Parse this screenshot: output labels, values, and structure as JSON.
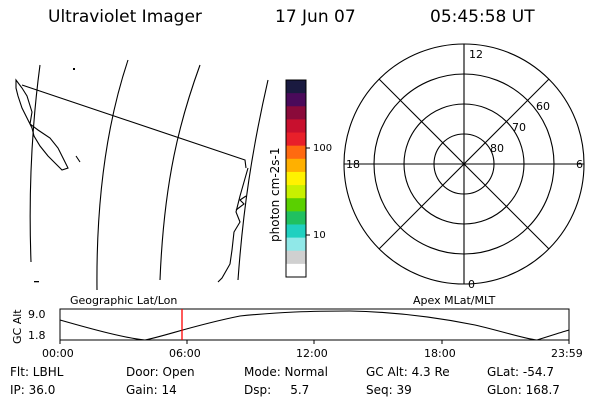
{
  "header": {
    "title": "Ultraviolet Imager",
    "date": "17 Jun 07",
    "time": "05:45:58 UT"
  },
  "colorbar": {
    "label": "photon cm-2s-1",
    "tick_labels": [
      "100",
      "10"
    ],
    "colors": [
      "#1a1a40",
      "#4a0a5a",
      "#8a0a3a",
      "#c8102e",
      "#e8202a",
      "#ff6a10",
      "#ffb000",
      "#fff200",
      "#c8f000",
      "#5ad000",
      "#20c060",
      "#20d0c0",
      "#90e8e8",
      "#d0d0d0",
      "#ffffff"
    ]
  },
  "polar_plot": {
    "mlt_labels": [
      "12",
      "18",
      "6",
      "0"
    ],
    "lat_labels": [
      "60",
      "70",
      "80"
    ]
  },
  "timeline": {
    "left_label": "Geographic Lat/Lon",
    "right_label": "Apex MLat/MLT",
    "ylabel": "GC Alt",
    "ytick_top": "9.0",
    "ytick_bottom": "1.8",
    "xticks": [
      "00:00",
      "06:00",
      "12:00",
      "18:00",
      "23:59"
    ],
    "marker_color": "#ff0000"
  },
  "info": {
    "filter": "Flt: LBHL",
    "door": "Door: Open",
    "mode": "Mode: Normal",
    "gc_alt": "GC Alt: 4.3 Re",
    "glat": "GLat: -54.7",
    "ip": "IP: 36.0",
    "gain": "Gain: 14",
    "dsp": "Dsp:     5.7",
    "seq": "Seq: 39",
    "glon": "GLon: 168.7"
  }
}
